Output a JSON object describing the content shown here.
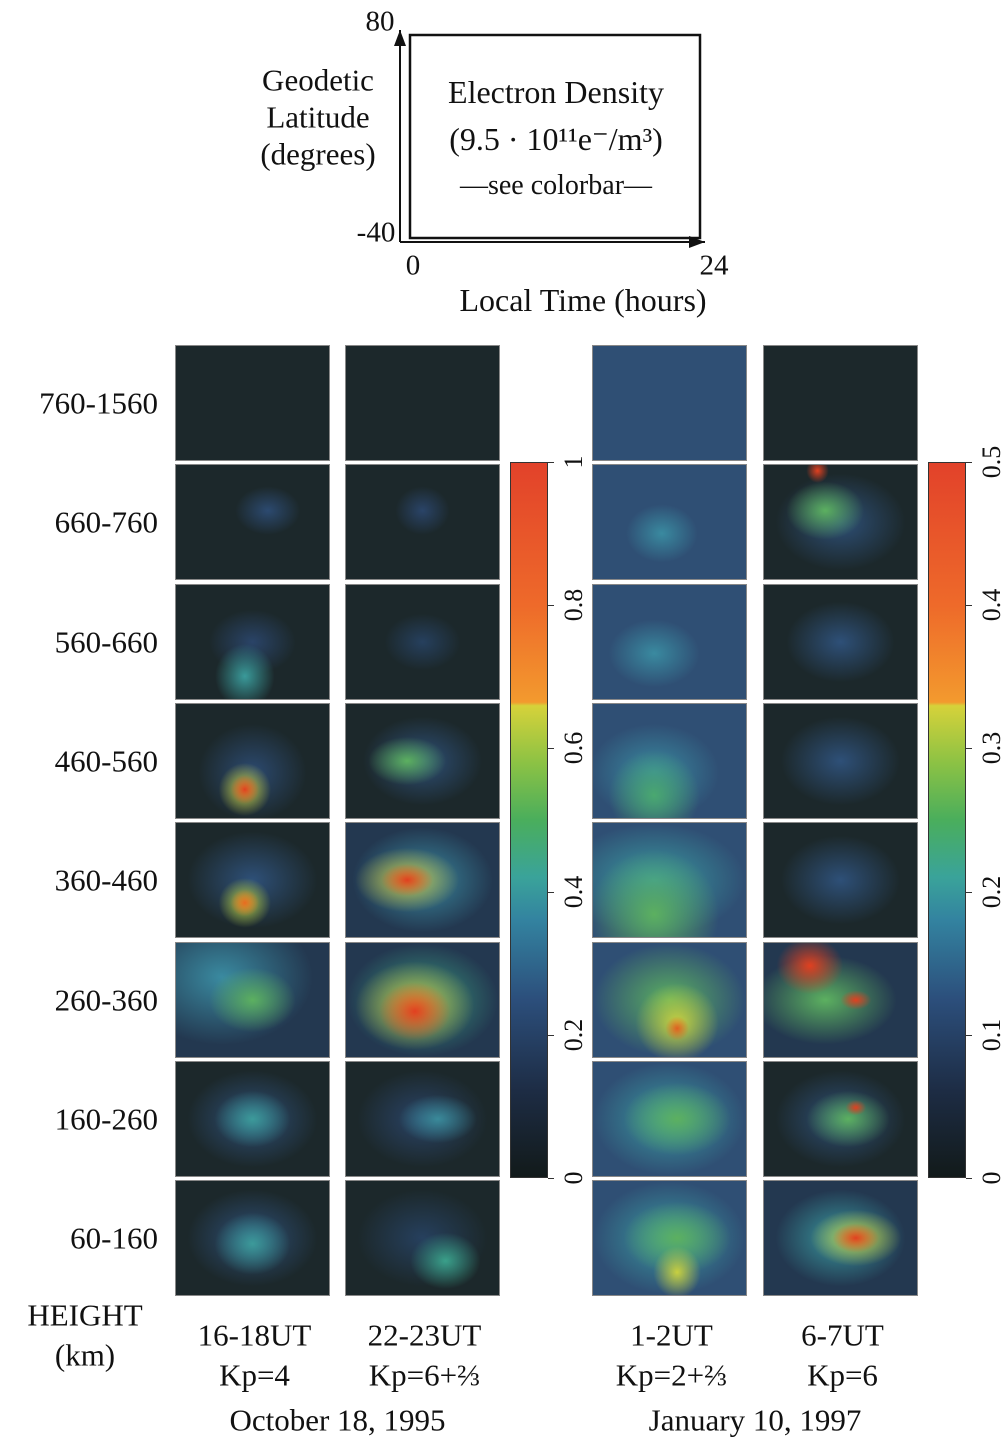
{
  "key": {
    "y_label": [
      "Geodetic",
      "Latitude",
      "(degrees)"
    ],
    "y_max": "80",
    "y_min": "-40",
    "x_min": "0",
    "x_max": "24",
    "x_label": "Local Time (hours)",
    "box": [
      "Electron Density",
      "(9.5 · 10¹¹e⁻/m³)",
      "—see colorbar—"
    ]
  },
  "rows": [
    "760-1560",
    "660-760",
    "560-660",
    "460-560",
    "360-460",
    "260-360",
    "160-260",
    "60-160"
  ],
  "height_label": [
    "HEIGHT",
    "(km)"
  ],
  "groups": [
    {
      "date": "October 18, 1995",
      "columns": [
        {
          "ut": "16-18UT",
          "kp": "Kp=4"
        },
        {
          "ut": "22-23UT",
          "kp": "Kp=6+⅔"
        }
      ],
      "colorbar": {
        "lim": [
          0,
          1
        ],
        "ticks": [
          0,
          0.2,
          0.4,
          0.6,
          0.8,
          1
        ]
      }
    },
    {
      "date": "January 10, 1997",
      "columns": [
        {
          "ut": "1-2UT",
          "kp": "Kp=2+⅔"
        },
        {
          "ut": "6-7UT",
          "kp": "Kp=6"
        }
      ],
      "colorbar": {
        "lim": [
          0,
          0.5
        ],
        "ticks": [
          0,
          0.1,
          0.2,
          0.3,
          0.4,
          0.5
        ]
      }
    }
  ]
}
